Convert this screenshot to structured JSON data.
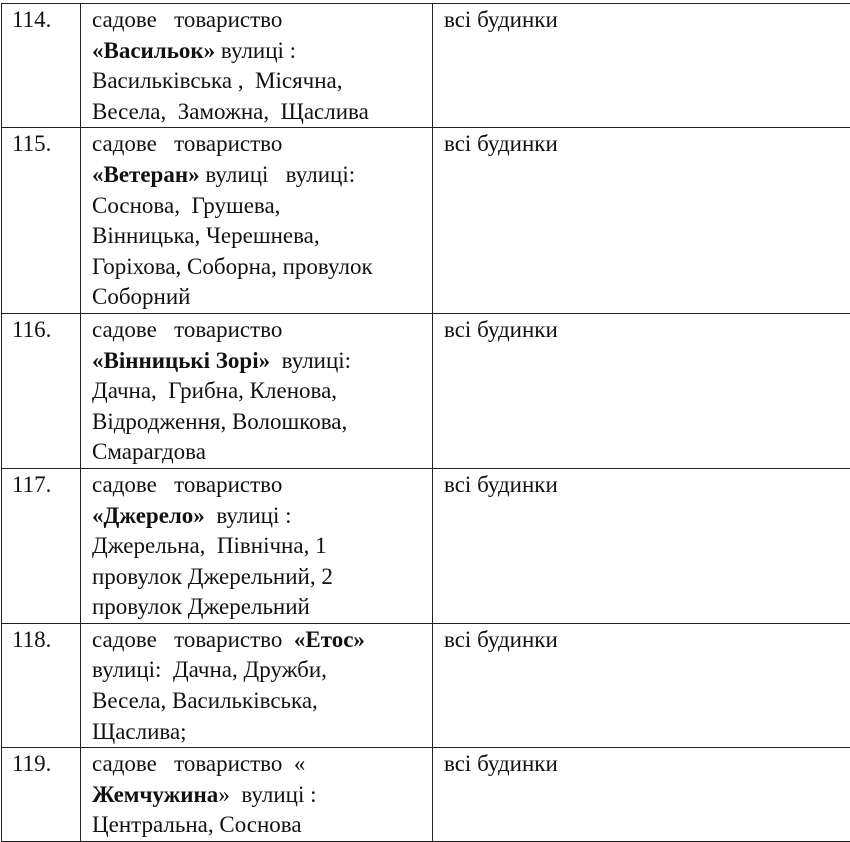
{
  "rows": [
    {
      "number": "114.",
      "value": "всі будинки",
      "lines": [
        {
          "pre": "садове   товариство",
          "bold": "",
          "post": ""
        },
        {
          "pre": "",
          "bold": "«Васильок»",
          "post": " вулиці :"
        },
        {
          "pre": "Васильківська ,  Місячна,",
          "bold": "",
          "post": ""
        },
        {
          "pre": "Весела,  Заможна,  Щаслива",
          "bold": "",
          "post": ""
        }
      ]
    },
    {
      "number": "115.",
      "value": "всі будинки",
      "lines": [
        {
          "pre": "садове   товариство",
          "bold": "",
          "post": ""
        },
        {
          "pre": "",
          "bold": "«Ветеран»",
          "post": " вулиці   вулиці:"
        },
        {
          "pre": "Соснова,  Грушева,",
          "bold": "",
          "post": ""
        },
        {
          "pre": "Вінницька, Черешнева,",
          "bold": "",
          "post": ""
        },
        {
          "pre": "Горіхова, Соборна, провулок",
          "bold": "",
          "post": ""
        },
        {
          "pre": "Соборний",
          "bold": "",
          "post": ""
        }
      ]
    },
    {
      "number": "116.",
      "value": "всі будинки",
      "lines": [
        {
          "pre": "садове   товариство",
          "bold": "",
          "post": ""
        },
        {
          "pre": "",
          "bold": "«Вінницькі Зорі»",
          "post": "  вулиці:"
        },
        {
          "pre": "Дачна,  Грибна, Кленова,",
          "bold": "",
          "post": ""
        },
        {
          "pre": "Відродження, Волошкова,",
          "bold": "",
          "post": ""
        },
        {
          "pre": "Смарагдова",
          "bold": "",
          "post": ""
        }
      ]
    },
    {
      "number": "117.",
      "value": "всі будинки",
      "lines": [
        {
          "pre": "садове   товариство",
          "bold": "",
          "post": ""
        },
        {
          "pre": "",
          "bold": "«Джерело»",
          "post": "  вулиці :"
        },
        {
          "pre": "Джерельна,  Північна, 1",
          "bold": "",
          "post": ""
        },
        {
          "pre": "провулок Джерельний, 2",
          "bold": "",
          "post": ""
        },
        {
          "pre": "провулок Джерельний",
          "bold": "",
          "post": ""
        }
      ]
    },
    {
      "number": "118.",
      "value": "всі будинки",
      "lines": [
        {
          "pre": "садове   товариство  ",
          "bold": "«Етос»",
          "post": ""
        },
        {
          "pre": "вулиці:  Дачна, Дружби,",
          "bold": "",
          "post": ""
        },
        {
          "pre": "Весела, Васильківська,",
          "bold": "",
          "post": ""
        },
        {
          "pre": "Щаслива;",
          "bold": "",
          "post": ""
        }
      ]
    },
    {
      "number": "119.",
      "value": "всі будинки",
      "lines": [
        {
          "pre": "садове   товариство  «",
          "bold": "",
          "post": ""
        },
        {
          "pre": "",
          "bold": "Жемчужина",
          "post": "»  вулиці :"
        },
        {
          "pre": "Центральна, Соснова",
          "bold": "",
          "post": ""
        }
      ]
    }
  ]
}
